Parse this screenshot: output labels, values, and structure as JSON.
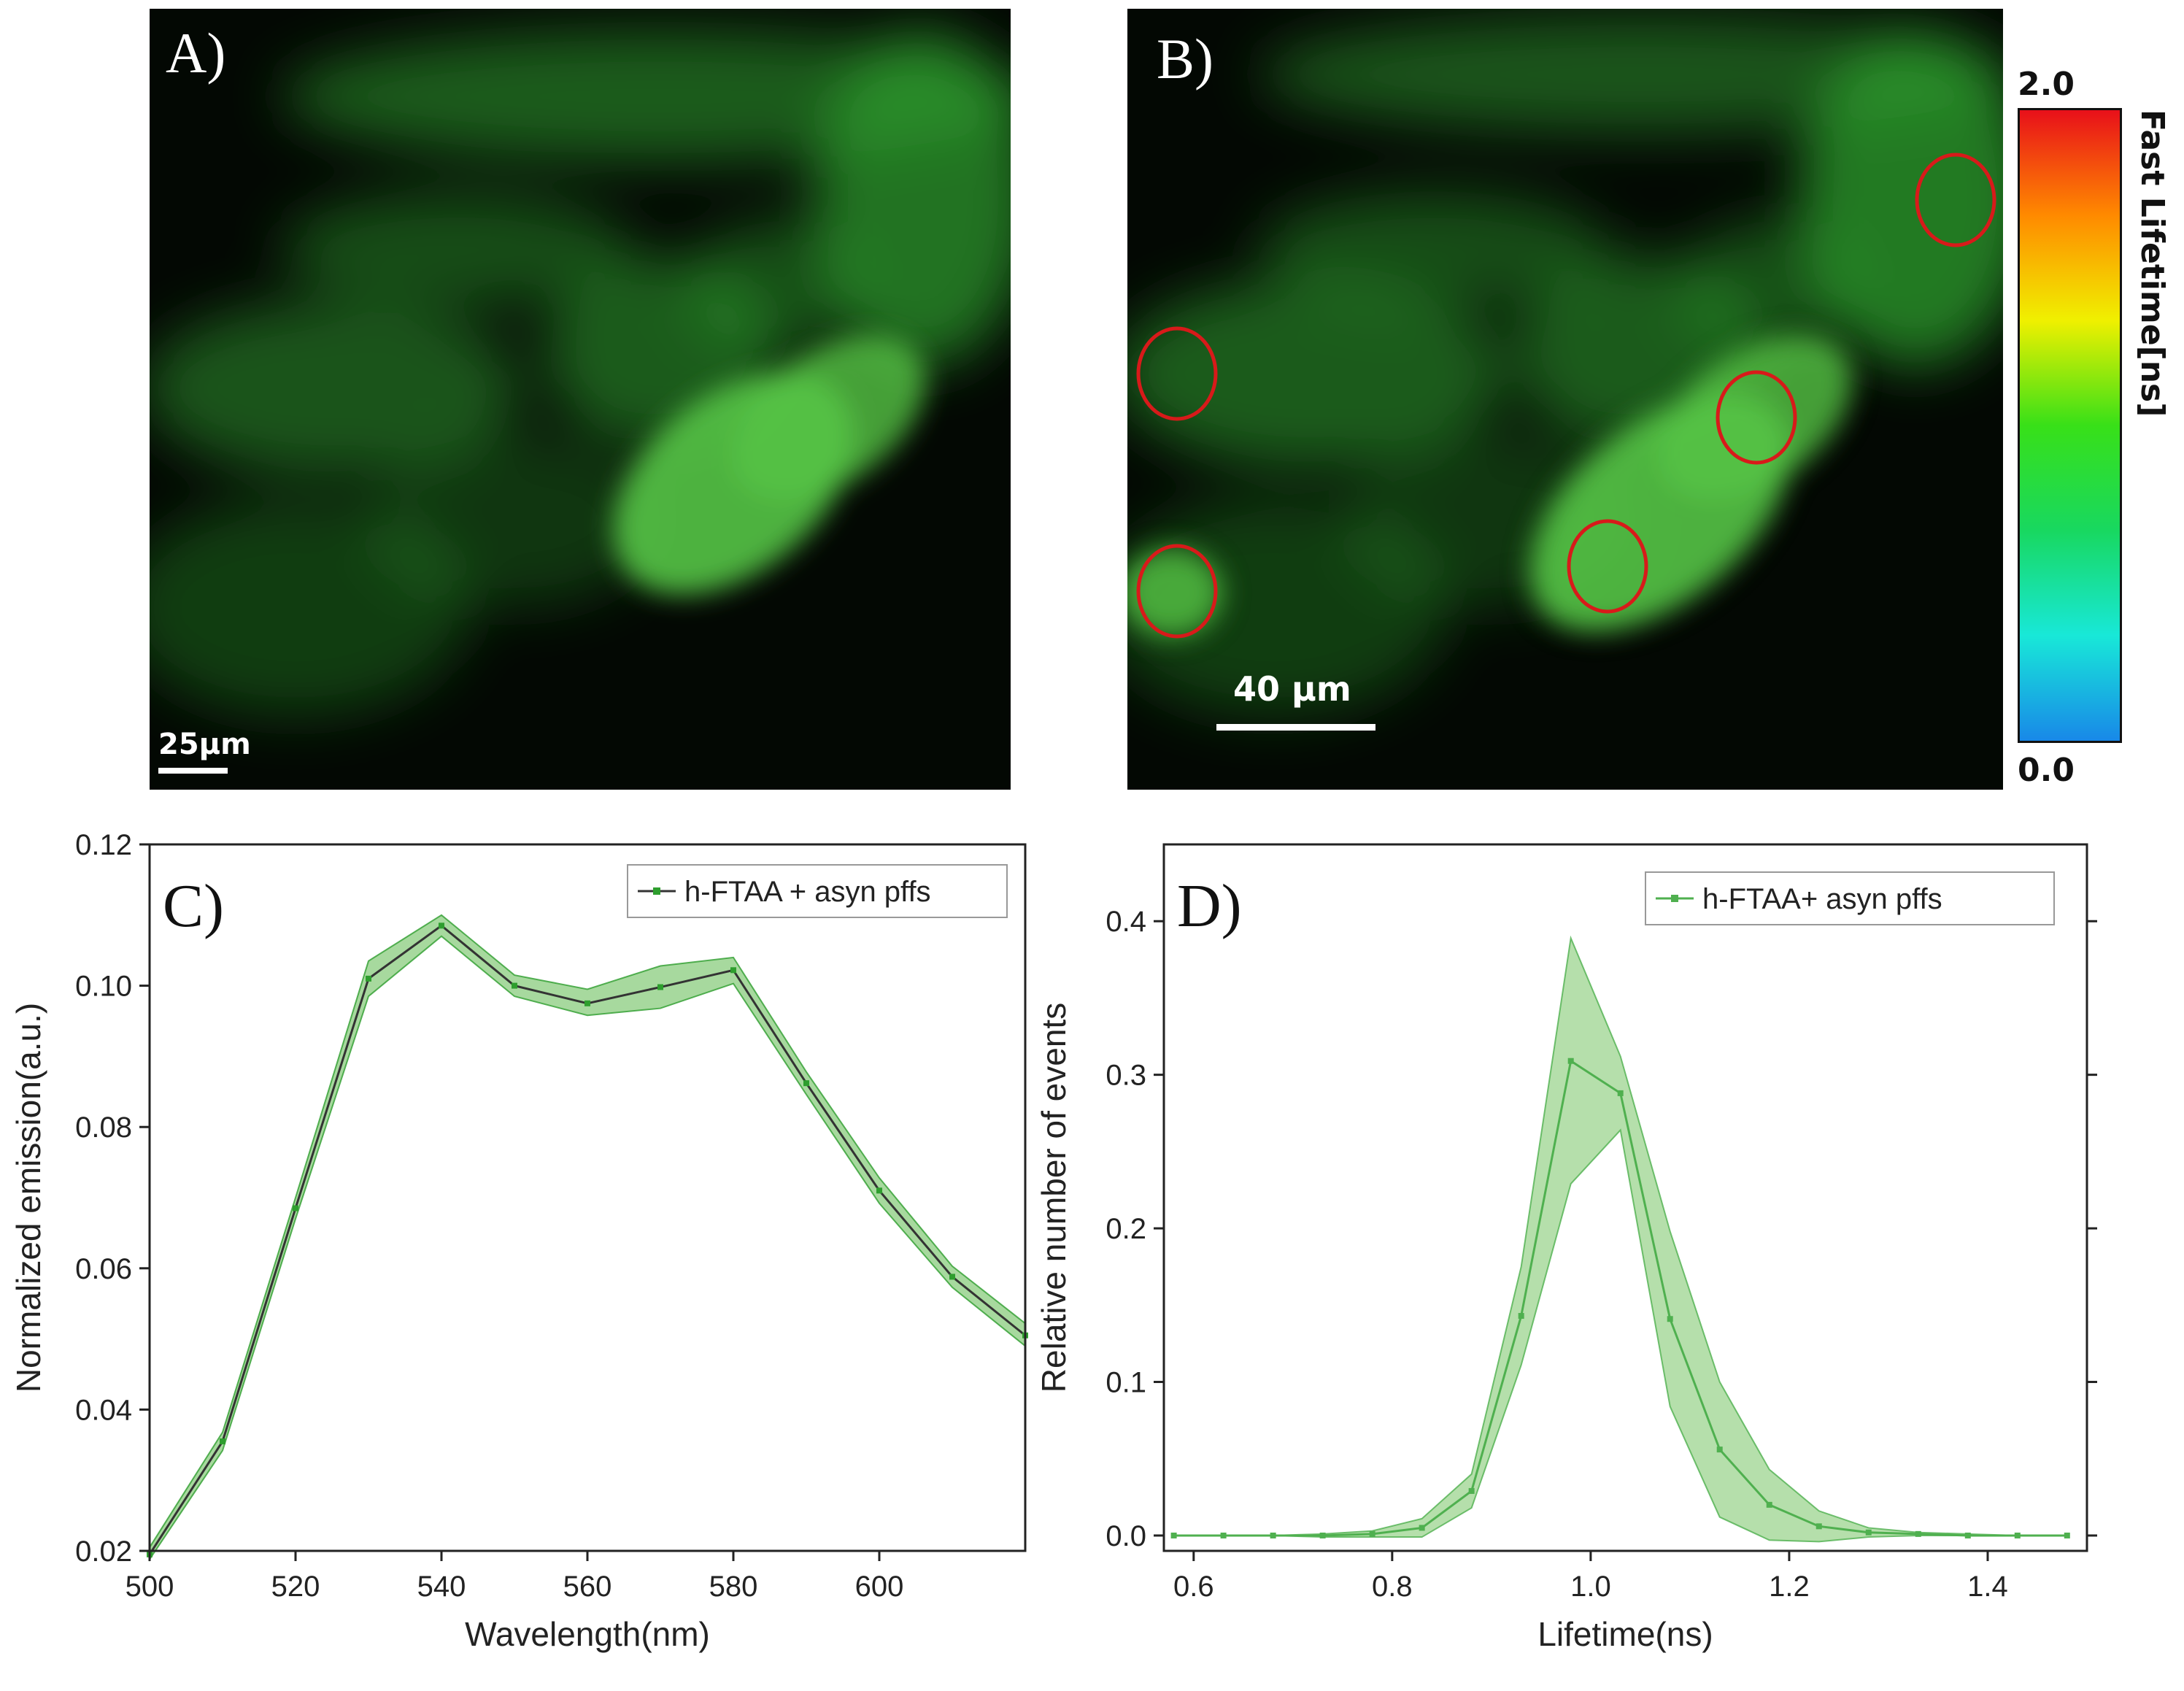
{
  "panels": {
    "a": {
      "letter": "A)",
      "scale_label": "25μm"
    },
    "b": {
      "letter": "B)",
      "scale_label": "40 μm"
    }
  },
  "colorbar": {
    "max_label": "2.0",
    "min_label": "0.0",
    "title": "Fast Lifetime[ns]",
    "colors": [
      "#e8101a",
      "#ff8a00",
      "#f0f000",
      "#38e018",
      "#18d860",
      "#18e8d8",
      "#1888e8"
    ]
  },
  "image_colors": {
    "background": "#030803",
    "fluorescence": "#2fa02f",
    "bright": "#55c445",
    "circle": "#d81a1a"
  },
  "chart_data": [
    {
      "id": "C",
      "type": "line",
      "panel_label": "C)",
      "xlabel": "Wavelength(nm)",
      "ylabel": "Normalized emission(a.u.)",
      "xlim": [
        500,
        620
      ],
      "ylim": [
        0.02,
        0.12
      ],
      "xticks": [
        500,
        520,
        540,
        560,
        580,
        600
      ],
      "yticks": [
        0.02,
        0.04,
        0.06,
        0.08,
        0.1,
        0.12
      ],
      "tick_format": 2,
      "x_tick_format": 0,
      "legend_position": "top-right",
      "series": [
        {
          "name": "h-FTAA + asyn pffs",
          "x": [
            500,
            510,
            520,
            530,
            540,
            550,
            560,
            570,
            580,
            590,
            600,
            610,
            620
          ],
          "y": [
            0.0195,
            0.0355,
            0.0685,
            0.101,
            0.1085,
            0.1,
            0.0975,
            0.0998,
            0.1022,
            0.0862,
            0.071,
            0.0588,
            0.0505
          ],
          "upper": [
            0.0205,
            0.0368,
            0.07,
            0.1035,
            0.11,
            0.1015,
            0.0995,
            0.1028,
            0.104,
            0.0878,
            0.0728,
            0.0603,
            0.0522
          ],
          "lower": [
            0.0188,
            0.0342,
            0.067,
            0.0985,
            0.107,
            0.0985,
            0.0958,
            0.0968,
            0.1003,
            0.0846,
            0.0692,
            0.0573,
            0.049
          ],
          "color": "#2e9e2e",
          "band_color": "#a7d99e"
        }
      ]
    },
    {
      "id": "D",
      "type": "line",
      "panel_label": "D)",
      "xlabel": "Lifetime(ns)",
      "ylabel": "Relative number of events",
      "xlim": [
        0.57,
        1.5
      ],
      "ylim": [
        -0.01,
        0.45
      ],
      "xticks": [
        0.6,
        0.8,
        1.0,
        1.2,
        1.4
      ],
      "yticks": [
        0.0,
        0.1,
        0.2,
        0.3,
        0.4
      ],
      "tick_format": 1,
      "x_tick_format": 1,
      "legend_position": "top-right",
      "series": [
        {
          "name": "h-FTAA+ asyn pffs",
          "x": [
            0.58,
            0.63,
            0.68,
            0.73,
            0.78,
            0.83,
            0.88,
            0.93,
            0.98,
            1.03,
            1.08,
            1.13,
            1.18,
            1.23,
            1.28,
            1.33,
            1.38,
            1.43,
            1.48
          ],
          "y": [
            0.0,
            0.0,
            0.0,
            0.0,
            0.001,
            0.005,
            0.029,
            0.143,
            0.309,
            0.288,
            0.141,
            0.056,
            0.02,
            0.006,
            0.002,
            0.001,
            0.0,
            0.0,
            0.0
          ],
          "upper": [
            0.0,
            0.0,
            0.0,
            0.001,
            0.003,
            0.011,
            0.04,
            0.175,
            0.389,
            0.312,
            0.198,
            0.1,
            0.043,
            0.016,
            0.005,
            0.002,
            0.001,
            0.0,
            0.0
          ],
          "lower": [
            0.0,
            0.0,
            0.0,
            -0.001,
            -0.001,
            -0.001,
            0.018,
            0.111,
            0.229,
            0.264,
            0.084,
            0.012,
            -0.003,
            -0.004,
            -0.001,
            0.0,
            0.0,
            0.0,
            0.0
          ],
          "color": "#4fb04f",
          "band_color": "#b5dfab"
        }
      ]
    }
  ]
}
